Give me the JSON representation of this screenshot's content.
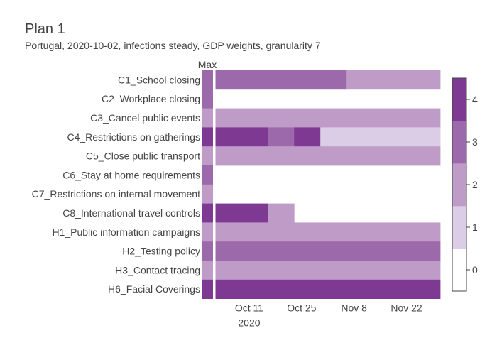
{
  "title": "Plan 1",
  "subtitle": "Portugal, 2020-10-02, infections steady, GDP weights, granularity 7",
  "max_label": "Max",
  "colors": {
    "level_0": "#ffffff",
    "level_1": "#dccde6",
    "level_2": "#bf9cc8",
    "level_3": "#9c6aaa",
    "level_4": "#7e3a92",
    "separator": "#ffffff"
  },
  "chart_data": {
    "type": "heatmap",
    "x_start": "2020-10-02",
    "x_end": "2020-12-01",
    "x_tick_labels": [
      "Oct 11",
      "Oct 25",
      "Nov 8",
      "Nov 22"
    ],
    "x_tick_year": "2020",
    "rows": [
      {
        "label": "C1_School closing",
        "max": 3,
        "segments": [
          {
            "start": "2020-10-02",
            "end": "2020-11-06",
            "value": 3
          },
          {
            "start": "2020-11-06",
            "end": "2020-12-01",
            "value": 2
          }
        ]
      },
      {
        "label": "C2_Workplace closing",
        "max": 3,
        "segments": []
      },
      {
        "label": "C3_Cancel public events",
        "max": 2,
        "segments": [
          {
            "start": "2020-10-02",
            "end": "2020-12-01",
            "value": 2
          }
        ]
      },
      {
        "label": "C4_Restrictions on gatherings",
        "max": 4,
        "segments": [
          {
            "start": "2020-10-02",
            "end": "2020-10-16",
            "value": 4
          },
          {
            "start": "2020-10-16",
            "end": "2020-10-23",
            "value": 3
          },
          {
            "start": "2020-10-23",
            "end": "2020-10-30",
            "value": 4
          },
          {
            "start": "2020-10-30",
            "end": "2020-12-01",
            "value": 1
          }
        ]
      },
      {
        "label": "C5_Close public transport",
        "max": 2,
        "segments": [
          {
            "start": "2020-10-02",
            "end": "2020-12-01",
            "value": 2
          }
        ]
      },
      {
        "label": "C6_Stay at home requirements",
        "max": 3,
        "segments": []
      },
      {
        "label": "C7_Restrictions on internal movement",
        "max": 2,
        "segments": []
      },
      {
        "label": "C8_International travel controls",
        "max": 4,
        "segments": [
          {
            "start": "2020-10-02",
            "end": "2020-10-16",
            "value": 4
          },
          {
            "start": "2020-10-16",
            "end": "2020-10-23",
            "value": 2
          }
        ]
      },
      {
        "label": "H1_Public information campaigns",
        "max": 2,
        "segments": [
          {
            "start": "2020-10-02",
            "end": "2020-12-01",
            "value": 2
          }
        ]
      },
      {
        "label": "H2_Testing policy",
        "max": 3,
        "segments": [
          {
            "start": "2020-10-02",
            "end": "2020-12-01",
            "value": 3
          }
        ]
      },
      {
        "label": "H3_Contact tracing",
        "max": 2,
        "segments": [
          {
            "start": "2020-10-02",
            "end": "2020-12-01",
            "value": 2
          }
        ]
      },
      {
        "label": "H6_Facial Coverings",
        "max": 4,
        "segments": [
          {
            "start": "2020-10-02",
            "end": "2020-12-01",
            "value": 4
          }
        ]
      }
    ],
    "colorbar": {
      "levels": [
        0,
        1,
        2,
        3,
        4
      ],
      "tick_labels": [
        "0",
        "1",
        "2",
        "3",
        "4"
      ]
    }
  }
}
